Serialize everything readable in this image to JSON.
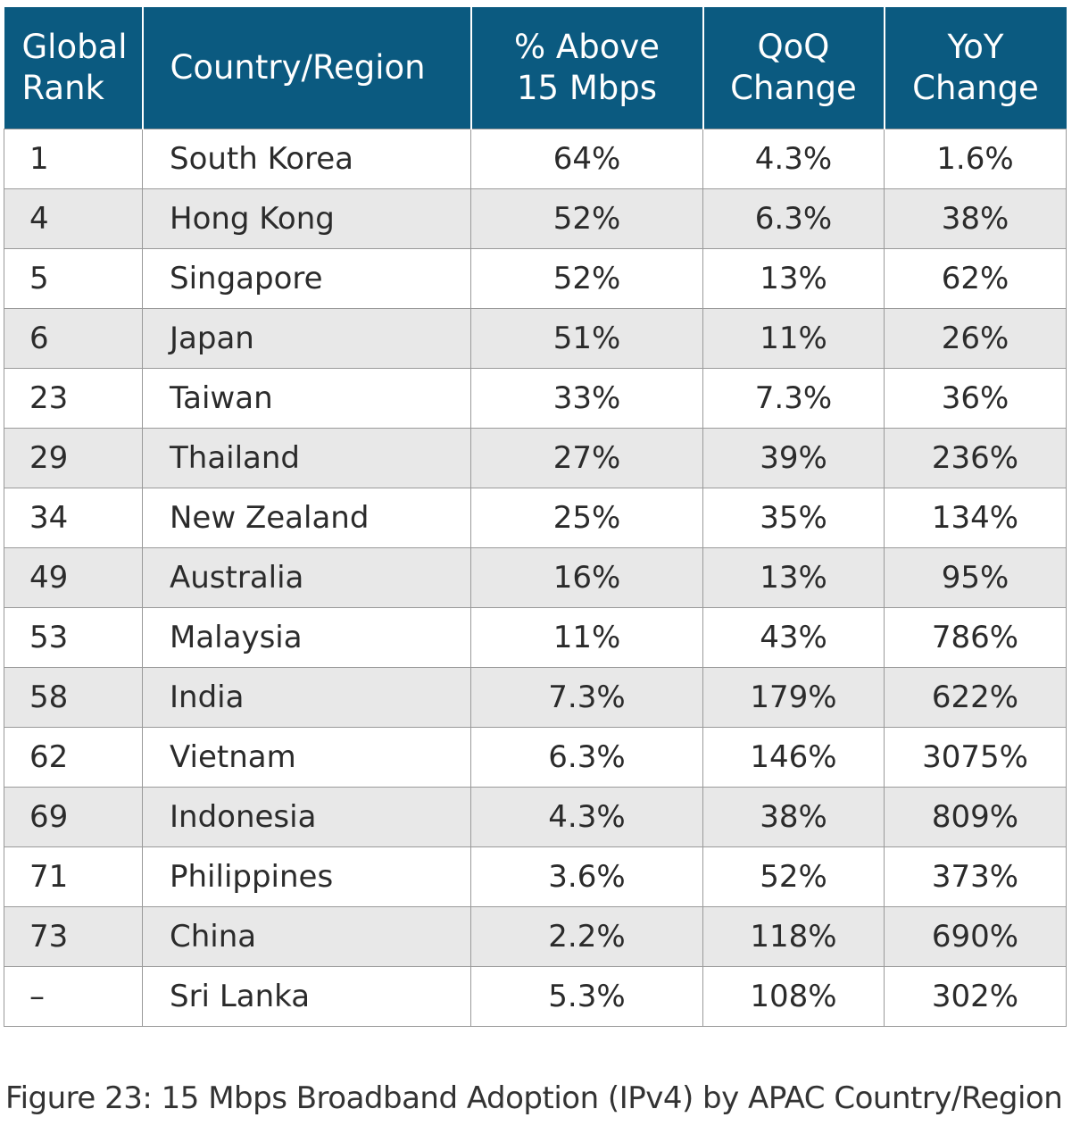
{
  "chart_data": {
    "type": "table",
    "columns": [
      {
        "lines": [
          "Global",
          "Rank"
        ]
      },
      {
        "lines": [
          "Country/Region"
        ]
      },
      {
        "lines": [
          "% Above",
          "15 Mbps"
        ]
      },
      {
        "lines": [
          "QoQ",
          "Change"
        ]
      },
      {
        "lines": [
          "YoY",
          "Change"
        ]
      }
    ],
    "rows": [
      [
        "1",
        "South Korea",
        "64%",
        "4.3%",
        "1.6%"
      ],
      [
        "4",
        "Hong Kong",
        "52%",
        "6.3%",
        "38%"
      ],
      [
        "5",
        "Singapore",
        "52%",
        "13%",
        "62%"
      ],
      [
        "6",
        "Japan",
        "51%",
        "11%",
        "26%"
      ],
      [
        "23",
        "Taiwan",
        "33%",
        "7.3%",
        "36%"
      ],
      [
        "29",
        "Thailand",
        "27%",
        "39%",
        "236%"
      ],
      [
        "34",
        "New Zealand",
        "25%",
        "35%",
        "134%"
      ],
      [
        "49",
        "Australia",
        "16%",
        "13%",
        "95%"
      ],
      [
        "53",
        "Malaysia",
        "11%",
        "43%",
        "786%"
      ],
      [
        "58",
        "India",
        "7.3%",
        "179%",
        "622%"
      ],
      [
        "62",
        "Vietnam",
        "6.3%",
        "146%",
        "3075%"
      ],
      [
        "69",
        "Indonesia",
        "4.3%",
        "38%",
        "809%"
      ],
      [
        "71",
        "Philippines",
        "3.6%",
        "52%",
        "373%"
      ],
      [
        "73",
        "China",
        "2.2%",
        "118%",
        "690%"
      ],
      [
        "–",
        "Sri Lanka",
        "5.3%",
        "108%",
        "302%"
      ]
    ],
    "caption": "Figure 23: 15 Mbps Broadband Adoption (IPv4) by APAC Country/Region"
  },
  "colors": {
    "header_bg": "#0b5a80",
    "header_text": "#ffffff",
    "row_alt_bg": "#e8e8e8",
    "border": "#9a9a9a"
  }
}
